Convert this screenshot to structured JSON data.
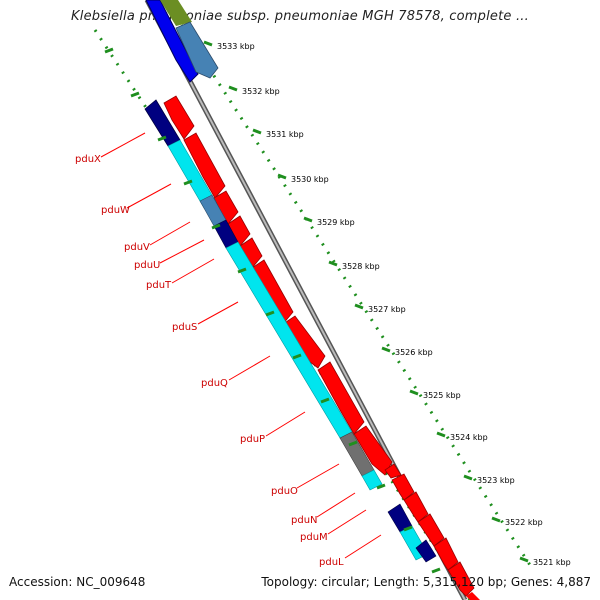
{
  "title": "Klebsiella pneumoniae subsp. pneumoniae MGH 78578, complete ...",
  "footer": {
    "accession": "Accession: NC_009648",
    "summary": "Topology: circular; Length: 5,315,120 bp; Genes: 4,887"
  },
  "ticks": [
    "3533 kbp",
    "3532 kbp",
    "3531 kbp",
    "3530 kbp",
    "3529 kbp",
    "3528 kbp",
    "3527 kbp",
    "3526 kbp",
    "3525 kbp",
    "3524 kbp",
    "3523 kbp",
    "3522 kbp",
    "3521 kbp"
  ],
  "gene_labels": [
    "pduX",
    "pduW",
    "pduV",
    "pduU",
    "pduT",
    "pduS",
    "pduQ",
    "pduP",
    "pduO",
    "pduN",
    "pduM",
    "pduL"
  ],
  "colors": {
    "forward": "#ff0000",
    "reverse_cyan": "#00e5ee",
    "navy": "#000080",
    "steel": "#4682b4",
    "blue": "#0000ff",
    "olive": "#6b8e23",
    "gray": "#707070",
    "backbone": "#888888",
    "scale": "#1f8f1f",
    "label": "#cc0000"
  }
}
